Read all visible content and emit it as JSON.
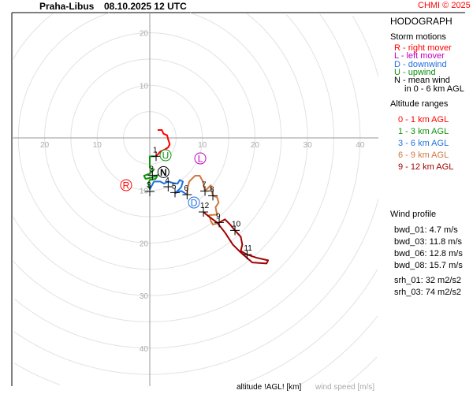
{
  "header": {
    "station": "Praha-Libus",
    "datetime": "08.10.2025 12 UTC",
    "copyright": "CHMI © 2025"
  },
  "legend": {
    "title": "HODOGRAPH",
    "storm_title": "Storm motions",
    "storm_items": [
      {
        "text": "R - right mover",
        "color": "#ff0000"
      },
      {
        "text": "L - left mover",
        "color": "#c000c0"
      },
      {
        "text": "D - downwind",
        "color": "#2070e0"
      },
      {
        "text": "U - upwind",
        "color": "#109010"
      },
      {
        "text": "N - mean wind",
        "color": "#000000"
      },
      {
        "text": "in 0 - 6 km AGL",
        "color": "#000000"
      }
    ],
    "alt_title": "Altitude ranges",
    "alt_items": [
      {
        "text": "0 - 1 km AGL",
        "color": "#ff0000"
      },
      {
        "text": "1 - 3 km AGL",
        "color": "#109010"
      },
      {
        "text": "3 - 6 km AGL",
        "color": "#2070e0"
      },
      {
        "text": "6 - 9 km AGL",
        "color": "#d07840"
      },
      {
        "text": "9 - 12 km AGL",
        "color": "#a00000"
      }
    ],
    "profile_title": "Wind profile",
    "profile_items": [
      "bwd_01: 4.7 m/s",
      "bwd_03: 11.8 m/s",
      "bwd_06: 12.8 m/s",
      "bwd_08: 15.7 m/s",
      "srh_01: 32 m2/s2",
      "srh_03: 74 m2/s2"
    ]
  },
  "footer": {
    "altitude_label": "altitude !AGL! [km]",
    "speed_label": "wind speed [m/s]"
  },
  "chart_data": {
    "type": "line",
    "title": "HODOGRAPH",
    "xlabel": "wind speed [m/s]",
    "ring_step": 5,
    "x_tick_labels": [
      "20",
      "10",
      "10",
      "20",
      "30",
      "40"
    ],
    "x_tick_values": [
      -20,
      -10,
      10,
      20,
      30,
      40
    ],
    "y_tick_labels": [
      "20",
      "10",
      "10",
      "20",
      "30",
      "40"
    ],
    "y_tick_values": [
      20,
      10,
      -10,
      -20,
      -30,
      -40
    ],
    "series": [
      {
        "name": "0 - 1 km AGL",
        "color": "#ff0000",
        "points": [
          [
            1.5,
            1.5
          ],
          [
            2.3,
            1.5
          ],
          [
            2.6,
            0.8
          ],
          [
            3.3,
            0.5
          ],
          [
            3.5,
            -0.3
          ],
          [
            3.8,
            -1.2
          ],
          [
            3.5,
            -1.8
          ],
          [
            2.7,
            -2.3
          ],
          [
            2.0,
            -2.6
          ],
          [
            1.2,
            -3.5
          ]
        ]
      },
      {
        "name": "1 - 3 km AGL",
        "color": "#109010",
        "points": [
          [
            1.2,
            -3.5
          ],
          [
            0,
            -3.5
          ],
          [
            0,
            -5.7
          ],
          [
            0.8,
            -6.0
          ],
          [
            0,
            -6.8
          ],
          [
            -1.1,
            -7.2
          ],
          [
            -0.8,
            -7.8
          ],
          [
            0.5,
            -7.5
          ],
          [
            1.5,
            -7.1
          ],
          [
            1.1,
            -7.8
          ],
          [
            0,
            -8.0
          ],
          [
            -0.3,
            -8.7
          ],
          [
            0,
            -9.8
          ]
        ]
      },
      {
        "name": "3 - 6 km AGL",
        "color": "#2070e0",
        "points": [
          [
            0,
            -9.8
          ],
          [
            0.8,
            -8.3
          ],
          [
            2.0,
            -8.3
          ],
          [
            2.7,
            -8.7
          ],
          [
            3.5,
            -8.3
          ],
          [
            4.5,
            -8.6
          ],
          [
            5.3,
            -8.7
          ],
          [
            5.7,
            -8.0
          ],
          [
            6.3,
            -8.3
          ],
          [
            6.0,
            -9.3
          ],
          [
            5.6,
            -9.8
          ],
          [
            4.8,
            -10.5
          ],
          [
            6.0,
            -10.1
          ],
          [
            7.1,
            -10.8
          ]
        ]
      },
      {
        "name": "6 - 9 km AGL",
        "color": "#d07840",
        "points": [
          [
            7.1,
            -10.8
          ],
          [
            7.2,
            -9.5
          ],
          [
            7.5,
            -8.3
          ],
          [
            8.6,
            -7.2
          ],
          [
            9.5,
            -7.2
          ],
          [
            10.1,
            -8.3
          ],
          [
            10.5,
            -10.1
          ],
          [
            11.6,
            -9.0
          ],
          [
            12.0,
            -11.0
          ],
          [
            12.8,
            -11.3
          ],
          [
            13.1,
            -12.3
          ],
          [
            12.5,
            -13.2
          ],
          [
            12.8,
            -14.6
          ],
          [
            11.3,
            -14.7
          ],
          [
            11.6,
            -15.8
          ],
          [
            12.0,
            -16.5
          ],
          [
            13.2,
            -16.1
          ]
        ]
      },
      {
        "name": "9 - 12 km AGL",
        "color": "#a00000",
        "points": [
          [
            13.2,
            -16.1
          ],
          [
            14.3,
            -15.5
          ],
          [
            15.3,
            -16.5
          ],
          [
            16.2,
            -17.6
          ],
          [
            17.3,
            -18.8
          ],
          [
            17.6,
            -20.3
          ],
          [
            17.3,
            -21.5
          ],
          [
            18.5,
            -22.2
          ],
          [
            20.3,
            -22.8
          ],
          [
            22.5,
            -23.3
          ],
          [
            22.2,
            -23.9
          ],
          [
            19.5,
            -23.7
          ],
          [
            17.3,
            -21.8
          ],
          [
            15.8,
            -20.3
          ],
          [
            14.3,
            -18.0
          ],
          [
            12.8,
            -16.1
          ],
          [
            11.3,
            -15.0
          ],
          [
            10.2,
            -14.1
          ]
        ]
      }
    ],
    "height_markers": [
      {
        "label": "1",
        "u": 1.2,
        "v": -3.5
      },
      {
        "label": "2",
        "u": 0.5,
        "v": -7.1
      },
      {
        "label": "3",
        "u": 0,
        "v": -10.2
      },
      {
        "label": "4",
        "u": 3.5,
        "v": -9.3
      },
      {
        "label": "5",
        "u": 4.8,
        "v": -10.4
      },
      {
        "label": "6",
        "u": 7.1,
        "v": -10.8
      },
      {
        "label": "7",
        "u": 10.5,
        "v": -10.1
      },
      {
        "label": "8",
        "u": 12.0,
        "v": -11.0
      },
      {
        "label": "9",
        "u": 13.2,
        "v": -16.1
      },
      {
        "label": "10",
        "u": 16.2,
        "v": -17.6
      },
      {
        "label": "11",
        "u": 18.5,
        "v": -22.2
      },
      {
        "label": "12",
        "u": 10.2,
        "v": -14.1
      }
    ],
    "storm_motions": [
      {
        "label": "R",
        "u": -4.5,
        "v": -9.0,
        "color": "#ff0000"
      },
      {
        "label": "L",
        "u": 9.6,
        "v": -3.9,
        "color": "#c000c0"
      },
      {
        "label": "D",
        "u": 8.4,
        "v": -12.3,
        "color": "#2070e0"
      },
      {
        "label": "U",
        "u": 3.0,
        "v": -3.3,
        "color": "#109010"
      },
      {
        "label": "N",
        "u": 2.6,
        "v": -6.5,
        "color": "#000000"
      }
    ]
  }
}
